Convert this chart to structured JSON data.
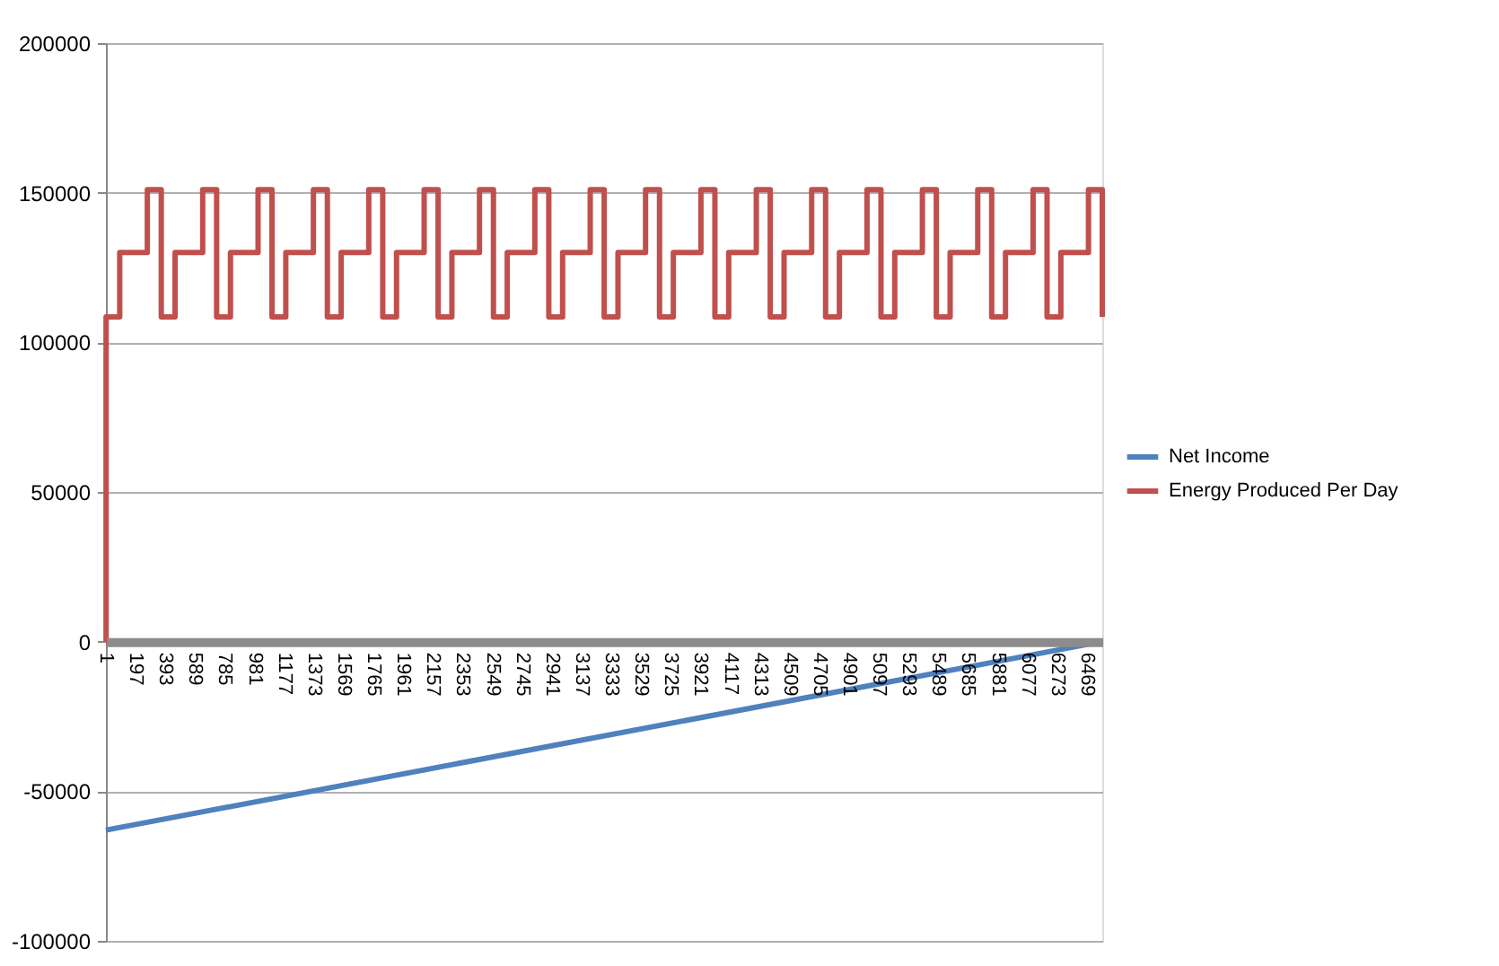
{
  "chart_data": {
    "type": "line",
    "xlim": [
      1,
      6570
    ],
    "xticks": [
      1,
      197,
      393,
      589,
      785,
      981,
      1177,
      1373,
      1569,
      1765,
      1961,
      2157,
      2353,
      2549,
      2745,
      2941,
      3137,
      3333,
      3529,
      3725,
      3921,
      4117,
      4313,
      4509,
      4705,
      4901,
      5097,
      5293,
      5489,
      5685,
      5881,
      6077,
      6273,
      6469
    ],
    "ylim": [
      -100000,
      200000
    ],
    "yticks": [
      -100000,
      -50000,
      0,
      50000,
      100000,
      150000,
      200000
    ],
    "grid": "y",
    "legend": "right",
    "marker": "none",
    "line_style": "solid",
    "series": [
      {
        "name": "Net Income",
        "color": "#4f81bd",
        "type": "line",
        "x": [
          1,
          6570
        ],
        "values": [
          -63000,
          0
        ]
      },
      {
        "name": "Energy Produced Per Day",
        "color": "#c0504d",
        "type": "step",
        "x": [
          1,
          2,
          92,
          274,
          366,
          457,
          639,
          731,
          822,
          1004,
          1096,
          1187,
          1369,
          1461,
          1552,
          1734,
          1826,
          1917,
          2099,
          2191,
          2282,
          2464,
          2556,
          2647,
          2829,
          2921,
          3012,
          3194,
          3286,
          3377,
          3559,
          3651,
          3742,
          3924,
          4016,
          4107,
          4289,
          4381,
          4472,
          4654,
          4746,
          4837,
          5019,
          5111,
          5202,
          5384,
          5476,
          5567,
          5749,
          5841,
          5932,
          6114,
          6206,
          6297,
          6479,
          6570
        ],
        "values": [
          0,
          108500,
          130000,
          151000,
          108500,
          130000,
          151000,
          108500,
          130000,
          151000,
          108500,
          130000,
          151000,
          108500,
          130000,
          151000,
          108500,
          130000,
          151000,
          108500,
          130000,
          151000,
          108500,
          130000,
          151000,
          108500,
          130000,
          151000,
          108500,
          130000,
          151000,
          108500,
          130000,
          151000,
          108500,
          130000,
          151000,
          108500,
          130000,
          151000,
          108500,
          130000,
          151000,
          108500,
          130000,
          151000,
          108500,
          130000,
          151000,
          108500,
          130000,
          151000,
          108500,
          130000,
          151000,
          108500
        ]
      }
    ]
  }
}
